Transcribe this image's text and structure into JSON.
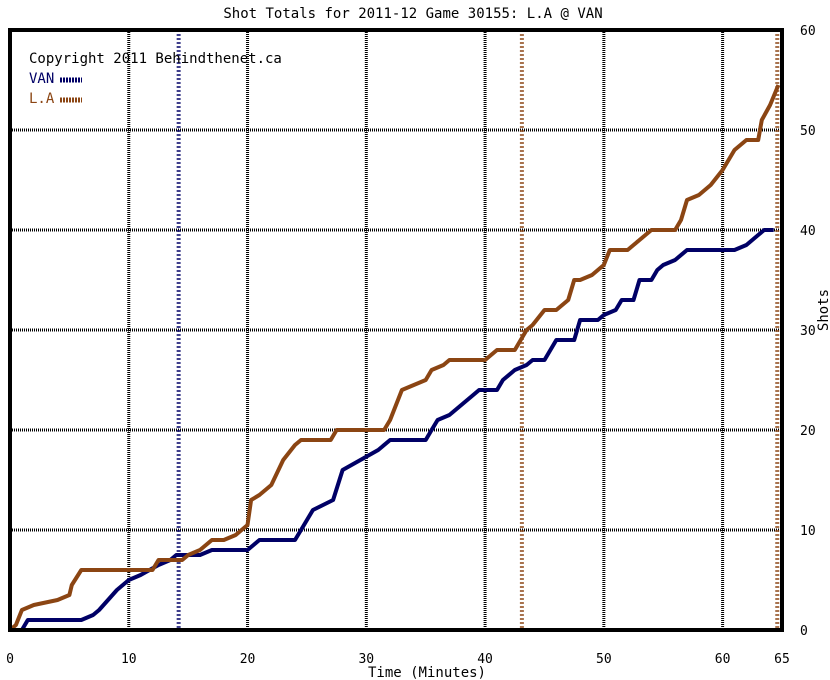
{
  "chart_data": {
    "type": "line",
    "title": "Shot Totals for 2011-12 Game 30155: L.A @ VAN",
    "xlabel": "Time (Minutes)",
    "ylabel": "Shots",
    "xlim": [
      0,
      65
    ],
    "ylim": [
      0,
      60
    ],
    "x_ticks": [
      0,
      10,
      20,
      30,
      40,
      50,
      60,
      65
    ],
    "y_ticks": [
      0,
      10,
      20,
      30,
      40,
      50,
      60
    ],
    "grid": true,
    "copyright": "Copyright 2011 Behindthenet.ca",
    "legend_position": "top-left",
    "goal_markers": [
      {
        "team": "VAN",
        "minute": 14.2
      },
      {
        "team": "L.A",
        "minute": 43.1
      },
      {
        "team": "L.A",
        "minute": 64.6
      }
    ],
    "series": [
      {
        "name": "VAN",
        "color": "#000066",
        "points": [
          [
            0,
            0
          ],
          [
            1,
            0
          ],
          [
            1.5,
            1
          ],
          [
            6,
            1
          ],
          [
            7,
            1.5
          ],
          [
            7.5,
            2
          ],
          [
            9,
            4
          ],
          [
            10,
            5
          ],
          [
            11,
            5.5
          ],
          [
            12.5,
            6.5
          ],
          [
            13.5,
            7
          ],
          [
            14,
            7.5
          ],
          [
            16,
            7.5
          ],
          [
            17,
            8
          ],
          [
            18,
            8
          ],
          [
            20,
            8
          ],
          [
            20.5,
            8.5
          ],
          [
            21,
            9
          ],
          [
            24,
            9
          ],
          [
            24.5,
            10
          ],
          [
            25.5,
            12
          ],
          [
            27.2,
            13
          ],
          [
            28,
            16
          ],
          [
            31,
            18
          ],
          [
            32,
            19
          ],
          [
            35,
            19
          ],
          [
            35.5,
            20
          ],
          [
            36,
            21
          ],
          [
            37,
            21.5
          ],
          [
            38,
            22.5
          ],
          [
            39,
            23.5
          ],
          [
            39.5,
            24
          ],
          [
            41,
            24
          ],
          [
            41.5,
            25
          ],
          [
            42.5,
            26
          ],
          [
            43.5,
            26.5
          ],
          [
            44,
            27
          ],
          [
            45,
            27
          ],
          [
            46,
            29
          ],
          [
            47.5,
            29
          ],
          [
            48,
            31
          ],
          [
            49.5,
            31
          ],
          [
            50,
            31.5
          ],
          [
            51,
            32
          ],
          [
            51.5,
            33
          ],
          [
            52.5,
            33
          ],
          [
            53,
            35
          ],
          [
            54,
            35
          ],
          [
            54.5,
            36
          ],
          [
            55,
            36.5
          ],
          [
            56,
            37
          ],
          [
            57,
            38
          ],
          [
            59,
            38
          ],
          [
            61,
            38
          ],
          [
            62,
            38.5
          ],
          [
            63,
            39.5
          ],
          [
            63.5,
            40
          ],
          [
            64.3,
            40
          ]
        ]
      },
      {
        "name": "L.A",
        "color": "#8B4513",
        "points": [
          [
            0,
            0
          ],
          [
            0.5,
            0.5
          ],
          [
            1,
            2
          ],
          [
            2,
            2.5
          ],
          [
            4,
            3
          ],
          [
            5,
            3.5
          ],
          [
            5.2,
            4.5
          ],
          [
            6,
            6
          ],
          [
            12,
            6
          ],
          [
            12.5,
            7
          ],
          [
            14.5,
            7
          ],
          [
            15,
            7.5
          ],
          [
            16,
            8
          ],
          [
            17,
            9
          ],
          [
            18,
            9
          ],
          [
            19,
            9.5
          ],
          [
            19.5,
            10
          ],
          [
            20,
            10.5
          ],
          [
            20.3,
            13
          ],
          [
            21,
            13.5
          ],
          [
            22,
            14.5
          ],
          [
            23,
            17
          ],
          [
            24,
            18.5
          ],
          [
            24.5,
            19
          ],
          [
            27,
            19
          ],
          [
            27.5,
            20
          ],
          [
            31.5,
            20
          ],
          [
            32,
            21
          ],
          [
            32.5,
            22.5
          ],
          [
            33,
            24
          ],
          [
            34,
            24.5
          ],
          [
            35,
            25
          ],
          [
            35.5,
            26
          ],
          [
            36.5,
            26.5
          ],
          [
            37,
            27
          ],
          [
            40,
            27
          ],
          [
            41,
            28
          ],
          [
            42.5,
            28
          ],
          [
            43,
            29
          ],
          [
            43.5,
            30
          ],
          [
            44,
            30.5
          ],
          [
            45,
            32
          ],
          [
            46,
            32
          ],
          [
            47,
            33
          ],
          [
            47.5,
            35
          ],
          [
            48,
            35
          ],
          [
            49,
            35.5
          ],
          [
            50,
            36.5
          ],
          [
            50.5,
            38
          ],
          [
            52,
            38
          ],
          [
            53,
            39
          ],
          [
            54,
            40
          ],
          [
            56,
            40
          ],
          [
            56.5,
            41
          ],
          [
            57,
            43
          ],
          [
            58,
            43.5
          ],
          [
            59,
            44.5
          ],
          [
            60,
            46
          ],
          [
            61,
            48
          ],
          [
            62,
            49
          ],
          [
            63,
            49
          ],
          [
            63.3,
            51
          ],
          [
            64,
            52.5
          ],
          [
            64.7,
            54.5
          ]
        ]
      }
    ]
  }
}
